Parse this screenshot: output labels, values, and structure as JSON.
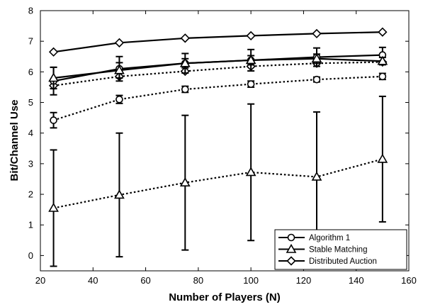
{
  "chart_data": {
    "type": "line",
    "title": "",
    "xlabel": "Number of Players (N)",
    "ylabel": "Bit/Channel Use",
    "xlim": [
      20,
      160
    ],
    "ylim": [
      -0.5,
      8
    ],
    "xticks": [
      20,
      40,
      60,
      80,
      100,
      120,
      140,
      160
    ],
    "yticks": [
      0,
      1,
      2,
      3,
      4,
      5,
      6,
      7,
      8
    ],
    "grid": false,
    "legend_position": "bottom-right",
    "x": [
      25,
      50,
      75,
      100,
      125,
      150
    ],
    "series": [
      {
        "name": "Algorithm 1",
        "marker": "circle",
        "color": "#000000",
        "solid_values": [
          5.7,
          6.1,
          6.28,
          6.38,
          6.48,
          6.55
        ],
        "solid_errors": [
          0.45,
          0.4,
          0.32,
          0.35,
          0.3,
          0.25
        ],
        "dotted_values": [
          4.42,
          5.1,
          5.43,
          5.6,
          5.75,
          5.85
        ],
        "dotted_errors": [
          0.25,
          0.13,
          0.1,
          0.1,
          0.08,
          0.1
        ]
      },
      {
        "name": "Stable Matching",
        "marker": "triangle",
        "color": "#000000",
        "solid_values": [
          5.8,
          6.05,
          6.28,
          6.38,
          6.43,
          6.35
        ],
        "solid_errors": [
          0.35,
          0.25,
          0.15,
          0.15,
          0.15,
          0.12
        ],
        "dotted_values": [
          1.55,
          1.98,
          2.38,
          2.72,
          2.57,
          3.15
        ],
        "dotted_errors": [
          1.9,
          2.02,
          2.2,
          2.23,
          2.12,
          2.05
        ]
      },
      {
        "name": "Distributed Auction",
        "marker": "diamond",
        "color": "#000000",
        "solid_values": [
          6.65,
          6.95,
          7.1,
          7.18,
          7.25,
          7.3
        ],
        "solid_errors": [
          0,
          0,
          0,
          0,
          0,
          0
        ],
        "dotted_values": [
          5.55,
          5.85,
          6.02,
          6.18,
          6.28,
          6.32
        ],
        "dotted_errors": [
          0.0,
          0.0,
          0.0,
          0.0,
          0.0,
          0.0
        ]
      }
    ]
  }
}
